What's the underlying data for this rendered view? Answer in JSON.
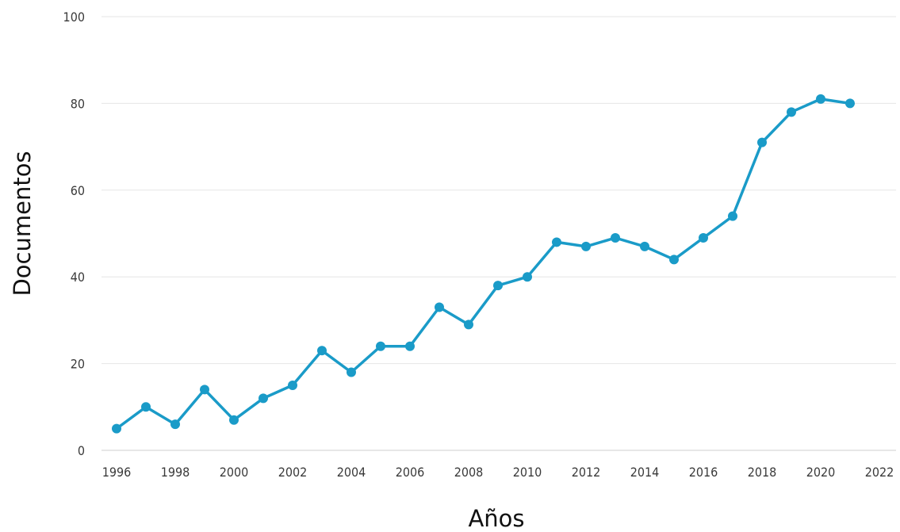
{
  "chart_data": {
    "type": "line",
    "title": "",
    "xlabel": "Años",
    "ylabel": "Documentos",
    "xlim": [
      1995,
      2022
    ],
    "ylim": [
      0,
      100
    ],
    "x_ticks": [
      1996,
      1998,
      2000,
      2002,
      2004,
      2006,
      2008,
      2010,
      2012,
      2014,
      2016,
      2018,
      2020,
      2022
    ],
    "y_ticks": [
      0,
      20,
      40,
      60,
      80,
      100
    ],
    "grid": "horizontal",
    "legend": "none",
    "color": "#1a9bc8",
    "series": [
      {
        "x": [
          1996,
          1997,
          1998,
          1999,
          2000,
          2001,
          2002,
          2003,
          2004,
          2005,
          2006,
          2007,
          2008,
          2009,
          2010,
          2011,
          2012,
          2013,
          2014,
          2015,
          2016,
          2017,
          2018,
          2019,
          2020,
          2021
        ],
        "values": [
          5,
          10,
          6,
          14,
          7,
          12,
          15,
          23,
          18,
          24,
          24,
          33,
          29,
          38,
          40,
          48,
          47,
          49,
          47,
          44,
          49,
          54,
          71,
          78,
          81,
          80
        ]
      }
    ]
  }
}
